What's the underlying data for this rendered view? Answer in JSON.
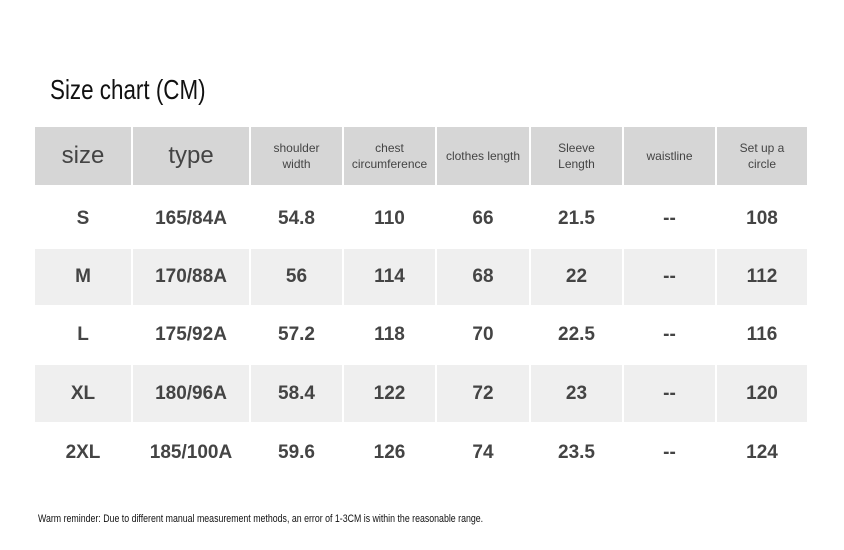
{
  "title": "Size chart (CM)",
  "table": {
    "header": [
      "size",
      "type",
      "shoulder width",
      "chest circumference",
      "clothes length",
      "Sleeve Length",
      "waistline",
      "Set up a circle"
    ],
    "rows": [
      [
        "S",
        "165/84A",
        "54.8",
        "110",
        "66",
        "21.5",
        "--",
        "108"
      ],
      [
        "M",
        "170/88A",
        "56",
        "114",
        "68",
        "22",
        "--",
        "112"
      ],
      [
        "L",
        "175/92A",
        "57.2",
        "118",
        "70",
        "22.5",
        "--",
        "116"
      ],
      [
        "XL",
        "180/96A",
        "58.4",
        "122",
        "72",
        "23",
        "--",
        "120"
      ],
      [
        "2XL",
        "185/100A",
        "59.6",
        "126",
        "74",
        "23.5",
        "--",
        "124"
      ]
    ]
  },
  "footnote": "Warm reminder: Due to different manual measurement methods, an error of 1-3CM is within the reasonable range."
}
